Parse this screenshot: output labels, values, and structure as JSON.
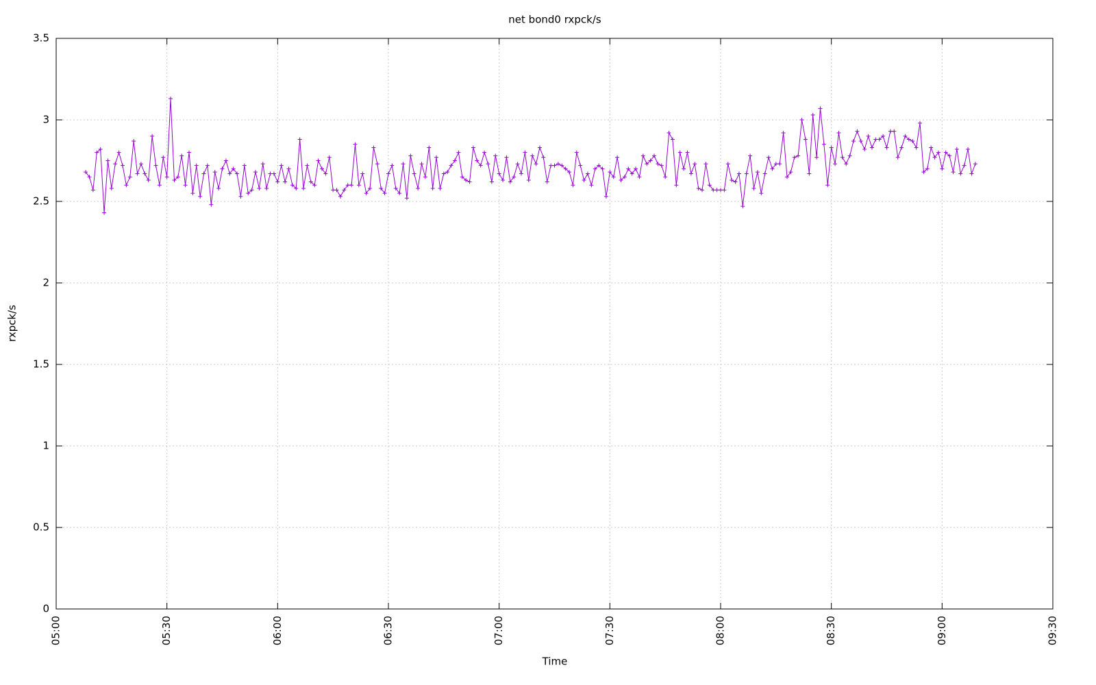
{
  "chart_data": {
    "type": "line",
    "title": "net bond0 rxpck/s",
    "x_label": "Time",
    "y_label": "rxpck/s",
    "color": "#9400d3",
    "grid": true,
    "markers": "+",
    "xlim": [
      "05:00",
      "09:30"
    ],
    "xticks": [
      "05:00",
      "05:30",
      "06:00",
      "06:30",
      "07:00",
      "07:30",
      "08:00",
      "08:30",
      "09:00",
      "09:30"
    ],
    "ylim": [
      0,
      3.5
    ],
    "yticks": [
      0,
      0.5,
      1,
      1.5,
      2,
      2.5,
      3,
      3.5
    ],
    "x": [
      "05:08",
      "05:09",
      "05:10",
      "05:11",
      "05:12",
      "05:13",
      "05:14",
      "05:15",
      "05:16",
      "05:17",
      "05:18",
      "05:19",
      "05:20",
      "05:21",
      "05:22",
      "05:23",
      "05:24",
      "05:25",
      "05:26",
      "05:27",
      "05:28",
      "05:29",
      "05:30",
      "05:31",
      "05:32",
      "05:33",
      "05:34",
      "05:35",
      "05:36",
      "05:37",
      "05:38",
      "05:39",
      "05:40",
      "05:41",
      "05:42",
      "05:43",
      "05:44",
      "05:45",
      "05:46",
      "05:47",
      "05:48",
      "05:49",
      "05:50",
      "05:51",
      "05:52",
      "05:53",
      "05:54",
      "05:55",
      "05:56",
      "05:57",
      "05:58",
      "05:59",
      "06:00",
      "06:01",
      "06:02",
      "06:03",
      "06:04",
      "06:05",
      "06:06",
      "06:07",
      "06:08",
      "06:09",
      "06:10",
      "06:11",
      "06:12",
      "06:13",
      "06:14",
      "06:15",
      "06:16",
      "06:17",
      "06:18",
      "06:19",
      "06:20",
      "06:21",
      "06:22",
      "06:23",
      "06:24",
      "06:25",
      "06:26",
      "06:27",
      "06:28",
      "06:29",
      "06:30",
      "06:31",
      "06:32",
      "06:33",
      "06:34",
      "06:35",
      "06:36",
      "06:37",
      "06:38",
      "06:39",
      "06:40",
      "06:41",
      "06:42",
      "06:43",
      "06:44",
      "06:45",
      "06:46",
      "06:47",
      "06:48",
      "06:49",
      "06:50",
      "06:51",
      "06:52",
      "06:53",
      "06:54",
      "06:55",
      "06:56",
      "06:57",
      "06:58",
      "06:59",
      "07:00",
      "07:01",
      "07:02",
      "07:03",
      "07:04",
      "07:05",
      "07:06",
      "07:07",
      "07:08",
      "07:09",
      "07:10",
      "07:11",
      "07:12",
      "07:13",
      "07:14",
      "07:15",
      "07:16",
      "07:17",
      "07:18",
      "07:19",
      "07:20",
      "07:21",
      "07:22",
      "07:23",
      "07:24",
      "07:25",
      "07:26",
      "07:27",
      "07:28",
      "07:29",
      "07:30",
      "07:31",
      "07:32",
      "07:33",
      "07:34",
      "07:35",
      "07:36",
      "07:37",
      "07:38",
      "07:39",
      "07:40",
      "07:41",
      "07:42",
      "07:43",
      "07:44",
      "07:45",
      "07:46",
      "07:47",
      "07:48",
      "07:49",
      "07:50",
      "07:51",
      "07:52",
      "07:53",
      "07:54",
      "07:55",
      "07:56",
      "07:57",
      "07:58",
      "07:59",
      "08:00",
      "08:01",
      "08:02",
      "08:03",
      "08:04",
      "08:05",
      "08:06",
      "08:07",
      "08:08",
      "08:09",
      "08:10",
      "08:11",
      "08:12",
      "08:13",
      "08:14",
      "08:15",
      "08:16",
      "08:17",
      "08:18",
      "08:19",
      "08:20",
      "08:21",
      "08:22",
      "08:23",
      "08:24",
      "08:25",
      "08:26",
      "08:27",
      "08:28",
      "08:29",
      "08:30",
      "08:31",
      "08:32",
      "08:33",
      "08:34",
      "08:35",
      "08:36",
      "08:37",
      "08:38",
      "08:39",
      "08:40",
      "08:41",
      "08:42",
      "08:43",
      "08:44",
      "08:45",
      "08:46",
      "08:47",
      "08:48",
      "08:49",
      "08:50",
      "08:51",
      "08:52",
      "08:53",
      "08:54",
      "08:55",
      "08:56",
      "08:57",
      "08:58",
      "08:59",
      "09:00",
      "09:01",
      "09:02",
      "09:03",
      "09:04",
      "09:05",
      "09:06",
      "09:07",
      "09:08",
      "09:09"
    ],
    "values": [
      2.68,
      2.65,
      2.57,
      2.8,
      2.82,
      2.43,
      2.75,
      2.58,
      2.73,
      2.8,
      2.72,
      2.6,
      2.65,
      2.87,
      2.67,
      2.73,
      2.67,
      2.63,
      2.9,
      2.72,
      2.6,
      2.77,
      2.65,
      3.13,
      2.63,
      2.65,
      2.78,
      2.6,
      2.8,
      2.55,
      2.72,
      2.53,
      2.67,
      2.72,
      2.48,
      2.68,
      2.58,
      2.7,
      2.75,
      2.67,
      2.7,
      2.67,
      2.53,
      2.72,
      2.55,
      2.57,
      2.68,
      2.58,
      2.73,
      2.58,
      2.67,
      2.67,
      2.62,
      2.72,
      2.62,
      2.7,
      2.6,
      2.58,
      2.88,
      2.58,
      2.72,
      2.62,
      2.6,
      2.75,
      2.7,
      2.67,
      2.77,
      2.57,
      2.57,
      2.53,
      2.57,
      2.6,
      2.6,
      2.85,
      2.6,
      2.67,
      2.55,
      2.58,
      2.83,
      2.73,
      2.58,
      2.55,
      2.67,
      2.72,
      2.58,
      2.55,
      2.73,
      2.52,
      2.78,
      2.67,
      2.58,
      2.73,
      2.65,
      2.83,
      2.58,
      2.77,
      2.58,
      2.67,
      2.68,
      2.72,
      2.75,
      2.8,
      2.65,
      2.63,
      2.62,
      2.83,
      2.75,
      2.72,
      2.8,
      2.73,
      2.62,
      2.78,
      2.67,
      2.63,
      2.77,
      2.62,
      2.65,
      2.73,
      2.67,
      2.8,
      2.63,
      2.78,
      2.73,
      2.83,
      2.77,
      2.62,
      2.72,
      2.72,
      2.73,
      2.72,
      2.7,
      2.68,
      2.6,
      2.8,
      2.72,
      2.63,
      2.67,
      2.6,
      2.7,
      2.72,
      2.7,
      2.53,
      2.68,
      2.65,
      2.77,
      2.63,
      2.65,
      2.7,
      2.67,
      2.7,
      2.65,
      2.78,
      2.73,
      2.75,
      2.78,
      2.73,
      2.72,
      2.65,
      2.92,
      2.88,
      2.6,
      2.8,
      2.7,
      2.8,
      2.67,
      2.73,
      2.58,
      2.57,
      2.73,
      2.6,
      2.57,
      2.57,
      2.57,
      2.57,
      2.73,
      2.63,
      2.62,
      2.67,
      2.47,
      2.67,
      2.78,
      2.58,
      2.68,
      2.55,
      2.67,
      2.77,
      2.7,
      2.73,
      2.73,
      2.92,
      2.65,
      2.68,
      2.77,
      2.78,
      3.0,
      2.88,
      2.67,
      3.03,
      2.77,
      3.07,
      2.85,
      2.6,
      2.83,
      2.73,
      2.92,
      2.77,
      2.73,
      2.78,
      2.87,
      2.93,
      2.87,
      2.82,
      2.9,
      2.83,
      2.88,
      2.88,
      2.9,
      2.83,
      2.93,
      2.93,
      2.77,
      2.83,
      2.9,
      2.88,
      2.87,
      2.83,
      2.98,
      2.68,
      2.7,
      2.83,
      2.77,
      2.8,
      2.7,
      2.8,
      2.78,
      2.68,
      2.82,
      2.67,
      2.72,
      2.82,
      2.67,
      2.73
    ]
  }
}
